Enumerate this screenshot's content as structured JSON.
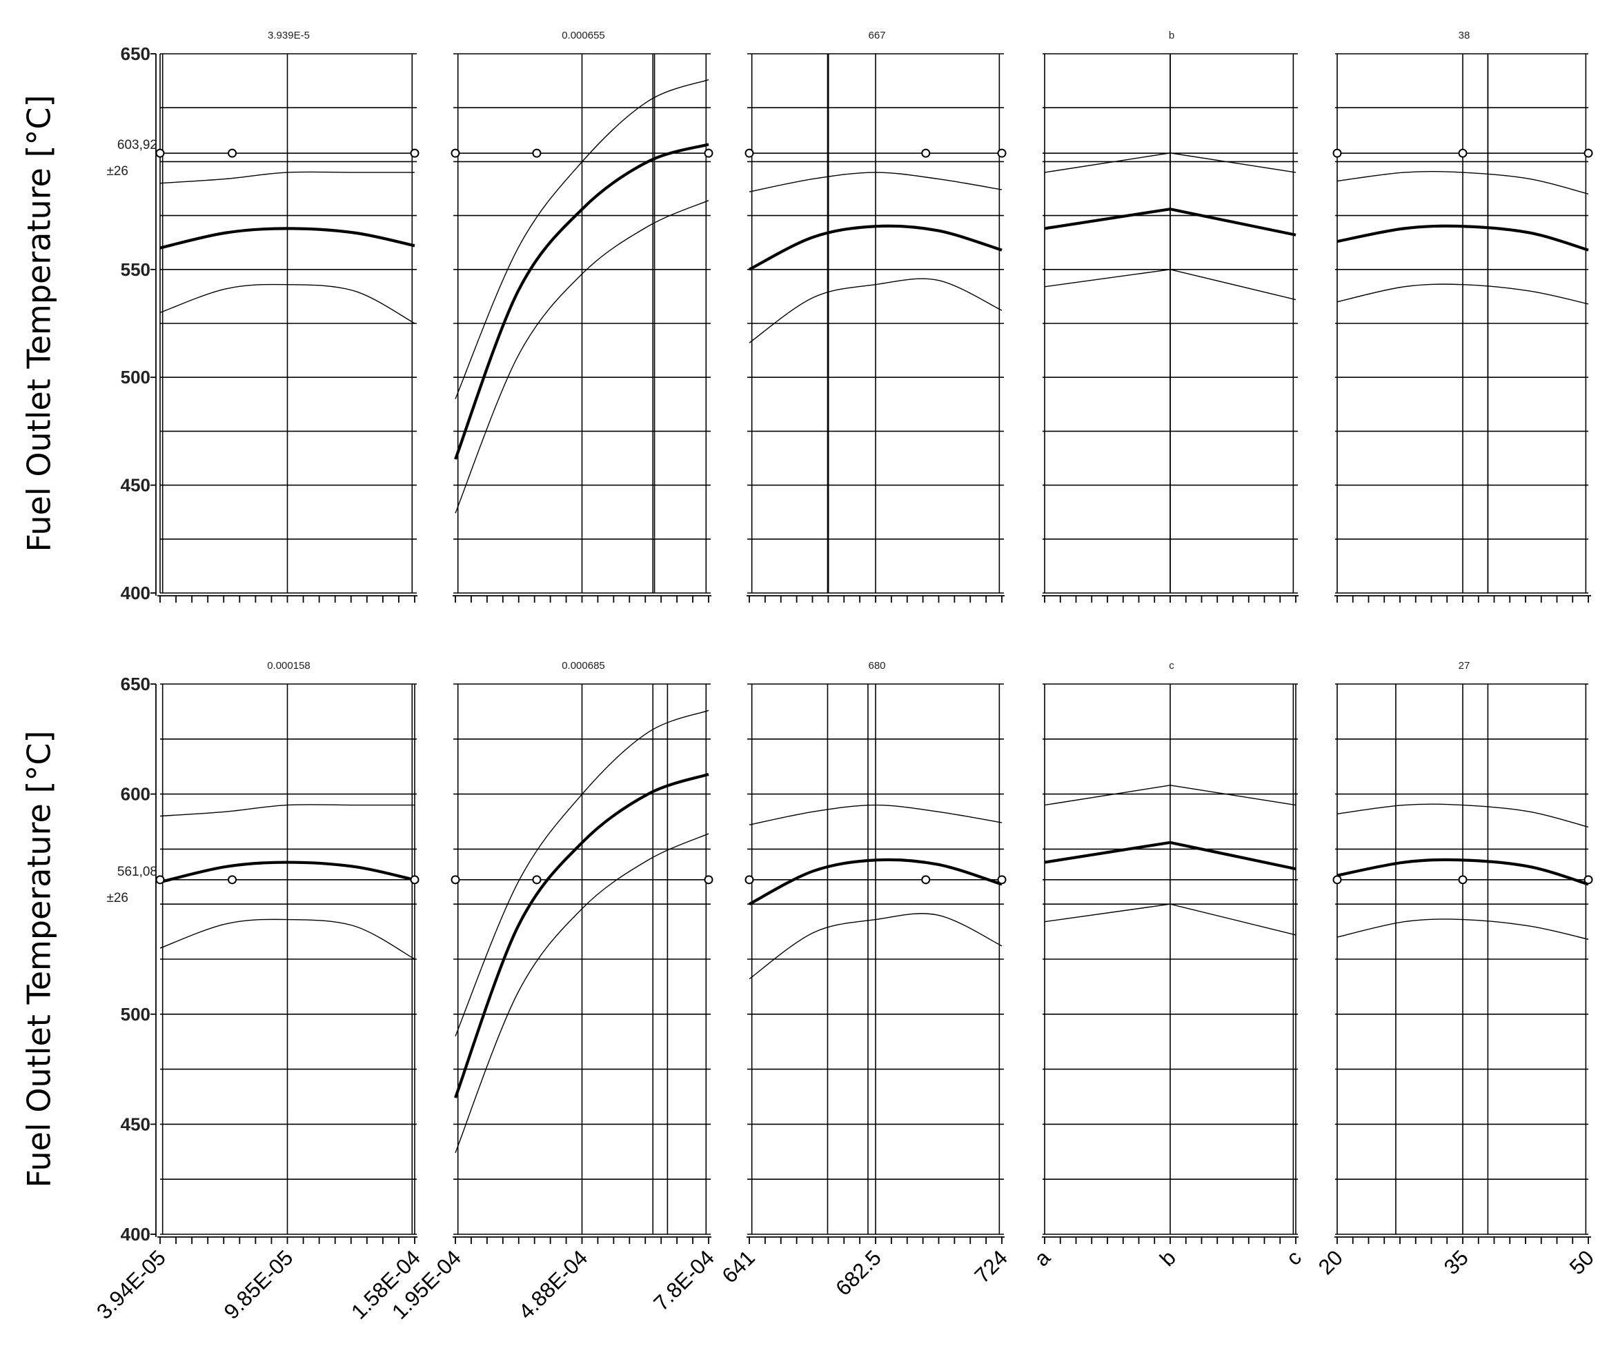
{
  "chart_data": [
    {
      "type": "line",
      "ylabel": "Fuel Outlet Temperature [°C]",
      "ylim": [
        400,
        650
      ],
      "yticks": [
        400,
        450,
        500,
        550,
        650
      ],
      "current_response": {
        "value_label": "603,92",
        "interval_label": "±26",
        "value": 603.92
      },
      "panels": [
        {
          "title": "3.939E-5",
          "x": [
            3.94e-05,
            7e-05,
            9.85e-05,
            0.00013,
            0.000158
          ],
          "mean": [
            560,
            567,
            569,
            567,
            561
          ],
          "upper": [
            590,
            592,
            595,
            595,
            595
          ],
          "lower": [
            530,
            541,
            543,
            540,
            525
          ],
          "current_x": 3.94e-05,
          "markers": [
            3.94e-05,
            7.3e-05,
            0.000158
          ]
        },
        {
          "title": "0.000655",
          "x": [
            0.000195,
            0.00034,
            0.000488,
            0.00064,
            0.00078
          ],
          "mean": [
            462,
            540,
            578,
            600,
            608
          ],
          "upper": [
            490,
            560,
            600,
            628,
            638
          ],
          "lower": [
            437,
            510,
            548,
            570,
            582
          ],
          "current_x": 0.000655,
          "markers": [
            0.000195,
            0.000383,
            0.00078
          ]
        },
        {
          "title": "667",
          "x": [
            641,
            662,
            682.5,
            703,
            724
          ],
          "mean": [
            550,
            565,
            570,
            568,
            559
          ],
          "upper": [
            586,
            592,
            595,
            592,
            587
          ],
          "lower": [
            516,
            537,
            543,
            545,
            531
          ],
          "current_x": 667,
          "markers": [
            641,
            699,
            724
          ]
        },
        {
          "title": "b",
          "x": [
            "a",
            "b",
            "c"
          ],
          "mean": [
            569,
            578,
            566
          ],
          "upper": [
            595,
            604,
            595
          ],
          "lower": [
            542,
            550,
            536
          ],
          "current_x": "b",
          "markers": []
        },
        {
          "title": "38",
          "x": [
            20,
            28,
            35,
            43,
            50
          ],
          "mean": [
            563,
            569,
            570,
            567,
            559
          ],
          "upper": [
            591,
            595,
            595,
            592,
            585
          ],
          "lower": [
            535,
            542,
            543,
            540,
            534
          ],
          "current_x": 38,
          "markers": [
            20,
            35,
            50
          ]
        }
      ]
    },
    {
      "type": "line",
      "ylabel": "Fuel Outlet Temperature [°C]",
      "ylim": [
        400,
        650
      ],
      "yticks": [
        400,
        450,
        500,
        600,
        650
      ],
      "current_response": {
        "value_label": "561,08",
        "interval_label": "±26",
        "value": 561.08
      },
      "panels": [
        {
          "title": "0.000158",
          "x": [
            3.94e-05,
            7e-05,
            9.85e-05,
            0.00013,
            0.000158
          ],
          "mean": [
            560,
            567,
            569,
            567,
            561
          ],
          "upper": [
            590,
            592,
            595,
            595,
            595
          ],
          "lower": [
            530,
            541,
            543,
            540,
            525
          ],
          "current_x": 0.000158,
          "markers": [
            3.94e-05,
            7.3e-05,
            0.000158
          ]
        },
        {
          "title": "0.000685",
          "x": [
            0.000195,
            0.00034,
            0.000488,
            0.00064,
            0.00078
          ],
          "mean": [
            462,
            540,
            578,
            600,
            609
          ],
          "upper": [
            490,
            560,
            600,
            628,
            638
          ],
          "lower": [
            437,
            510,
            548,
            570,
            582
          ],
          "current_x": 0.000685,
          "markers": [
            0.000195,
            0.000383,
            0.00078
          ]
        },
        {
          "title": "680",
          "x": [
            641,
            662,
            682.5,
            703,
            724
          ],
          "mean": [
            550,
            565,
            570,
            568,
            559
          ],
          "upper": [
            586,
            592,
            595,
            592,
            587
          ],
          "lower": [
            516,
            537,
            543,
            545,
            531
          ],
          "current_x": 680,
          "markers": [
            641,
            699,
            724
          ]
        },
        {
          "title": "c",
          "x": [
            "a",
            "b",
            "c"
          ],
          "mean": [
            569,
            578,
            566
          ],
          "upper": [
            595,
            604,
            595
          ],
          "lower": [
            542,
            550,
            536
          ],
          "current_x": "c",
          "markers": []
        },
        {
          "title": "27",
          "x": [
            20,
            28,
            35,
            43,
            50
          ],
          "mean": [
            563,
            569,
            570,
            567,
            559
          ],
          "upper": [
            591,
            595,
            595,
            592,
            585
          ],
          "lower": [
            535,
            542,
            543,
            540,
            534
          ],
          "current_x": 27,
          "markers": [
            20,
            35,
            50
          ]
        }
      ],
      "xtick_labels": [
        [
          "3.94E-05",
          "9.85E-05",
          "1.58E-04"
        ],
        [
          "1.95E-04",
          "4.88E-04",
          "7.8E-04"
        ],
        [
          "641",
          "682.5",
          "724"
        ],
        [
          "a",
          "b",
          "c"
        ],
        [
          "20",
          "35",
          "50"
        ]
      ]
    }
  ]
}
